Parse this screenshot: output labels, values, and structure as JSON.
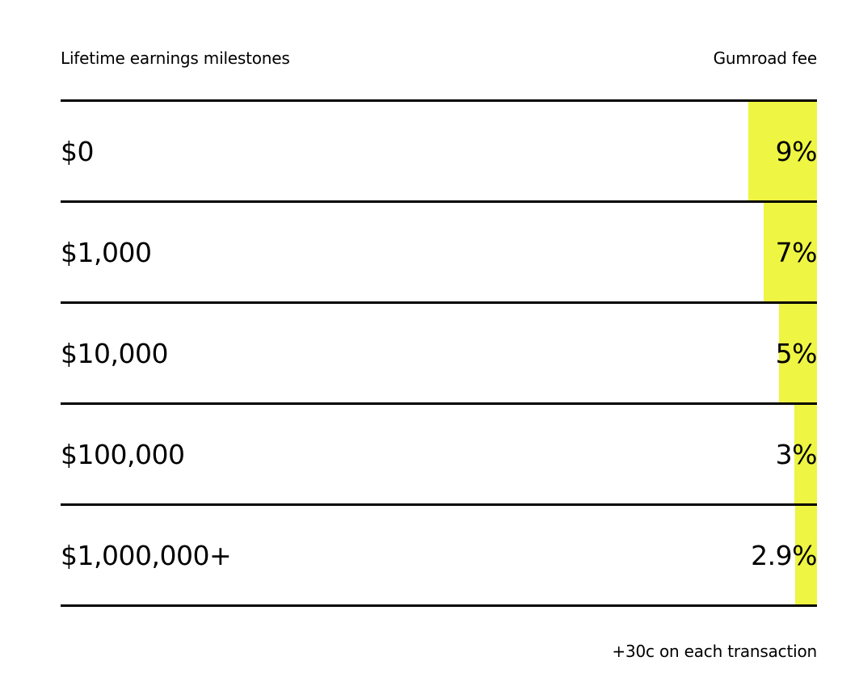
{
  "header": {
    "milestones_label": "Lifetime earnings milestones",
    "fee_label": "Gumroad fee"
  },
  "tiers": [
    {
      "milestone": "$0",
      "fee": "9%",
      "fee_value": 9
    },
    {
      "milestone": "$1,000",
      "fee": "7%",
      "fee_value": 7
    },
    {
      "milestone": "$10,000",
      "fee": "5%",
      "fee_value": 5
    },
    {
      "milestone": "$100,000",
      "fee": "3%",
      "fee_value": 3
    },
    {
      "milestone": "$1,000,000+",
      "fee": "2.9%",
      "fee_value": 2.9
    }
  ],
  "footer": {
    "note": "+30c on each transaction"
  },
  "colors": {
    "highlight": "#eef542",
    "rule": "#000000",
    "background": "#ffffff"
  }
}
